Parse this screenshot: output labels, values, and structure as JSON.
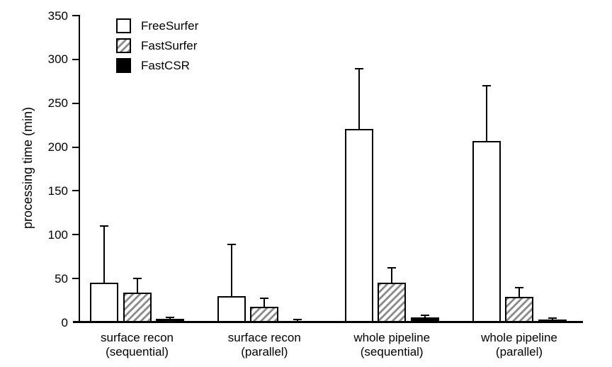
{
  "figure": {
    "background": "#ffffff"
  },
  "chart_data": {
    "type": "bar",
    "title": "",
    "xlabel": "",
    "ylabel": "processing time (min)",
    "ylim": [
      0,
      350
    ],
    "yticks": [
      0,
      50,
      100,
      150,
      200,
      250,
      300,
      350
    ],
    "grid": false,
    "legend_position": "top-left-inside",
    "error_bars": "upper-only",
    "categories": [
      [
        "surface recon",
        "(sequential)"
      ],
      [
        "surface recon",
        "(parallel)"
      ],
      [
        "whole pipeline",
        "(sequential)"
      ],
      [
        "whole pipeline",
        "(parallel)"
      ]
    ],
    "series": [
      {
        "name": "FreeSurfer",
        "style": "white",
        "values": [
          45,
          30,
          221,
          207
        ],
        "errors_upper": [
          65,
          59,
          68,
          63
        ]
      },
      {
        "name": "FastSurfer",
        "style": "hatched",
        "values": [
          34,
          18,
          45,
          29
        ],
        "errors_upper": [
          16,
          9.5,
          17,
          11
        ]
      },
      {
        "name": "FastCSR",
        "style": "black",
        "values": [
          4,
          2,
          6,
          3.5
        ],
        "errors_upper": [
          2,
          1.5,
          2,
          1.5
        ]
      }
    ]
  },
  "colors": {
    "axis": "#000000",
    "bar_outline": "#000000",
    "hatch_stripe": "#8c8c8c",
    "bar_fill_white": "#ffffff",
    "bar_fill_black": "#000000",
    "background": "#ffffff",
    "text": "#000000"
  }
}
